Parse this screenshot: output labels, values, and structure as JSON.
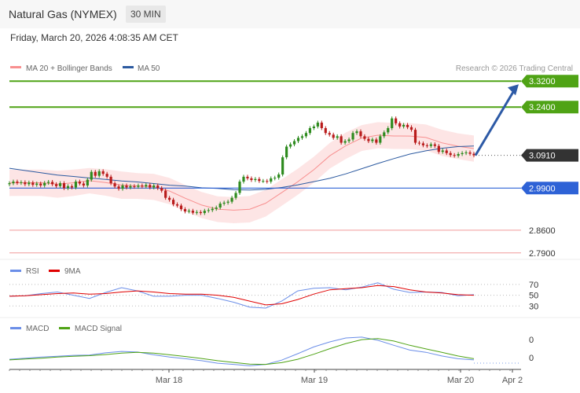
{
  "header": {
    "title": "Natural Gas (NYMEX)",
    "timeframe": "30 MIN",
    "datetime": "Friday, March 20, 2026 4:08:35 AM CET",
    "credit": "Research © 2026 Trading Central"
  },
  "colors": {
    "bollinger": "#f88f8f",
    "bollinger_band_fill": "#fde0e0",
    "ma50": "#2c5aa0",
    "resistance": "#4fa315",
    "support_blue": "#2e62d6",
    "support_red": "#f09a9a",
    "current": "#333333",
    "rsi": "#6b8ee8",
    "rsi_ma": "#e00000",
    "macd": "#6b8ee8",
    "macd_signal": "#4fa315",
    "candle_up": "#2e8b1f",
    "candle_down": "#b91c1c",
    "arrow": "#2d5aa6"
  },
  "chart_data": [
    {
      "type": "candlestick",
      "title": "",
      "legend": [
        "MA 20 + Bollinger Bands",
        "MA 50"
      ],
      "ylim": [
        2.77,
        3.34
      ],
      "x_ticks": [
        "Mar 18",
        "Mar 19",
        "Mar 20",
        "Apr 2"
      ],
      "levels": [
        {
          "value": 3.32,
          "label": "3.3200",
          "kind": "resistance"
        },
        {
          "value": 3.24,
          "label": "3.2400",
          "kind": "resistance"
        },
        {
          "value": 3.091,
          "label": "3.0910",
          "kind": "current"
        },
        {
          "value": 2.99,
          "label": "2.9900",
          "kind": "support_blue"
        },
        {
          "value": 2.86,
          "label": "2.8600",
          "kind": "support_red"
        },
        {
          "value": 2.79,
          "label": "2.7900",
          "kind": "support_red"
        }
      ],
      "close": [
        3.005,
        3.01,
        3.006,
        3.008,
        3.002,
        3.007,
        3.0,
        3.004,
        2.998,
        3.006,
        3.009,
        3.002,
        2.996,
        3.005,
        2.99,
        2.996,
        2.992,
        3.01,
        3.004,
        2.998,
        3.016,
        3.04,
        3.028,
        3.042,
        3.034,
        3.025,
        3.005,
        2.995,
        2.988,
        2.998,
        2.992,
        2.996,
        2.994,
        2.998,
        2.995,
        3.0,
        2.992,
        2.998,
        2.99,
        2.982,
        2.96,
        2.954,
        2.94,
        2.936,
        2.925,
        2.918,
        2.92,
        2.914,
        2.916,
        2.913,
        2.92,
        2.922,
        2.926,
        2.93,
        2.942,
        2.945,
        2.948,
        2.96,
        2.975,
        3.01,
        3.025,
        3.02,
        3.015,
        3.018,
        3.012,
        3.012,
        3.01,
        3.02,
        3.022,
        3.032,
        3.085,
        3.118,
        3.125,
        3.135,
        3.145,
        3.15,
        3.16,
        3.175,
        3.18,
        3.192,
        3.175,
        3.16,
        3.155,
        3.145,
        3.15,
        3.13,
        3.135,
        3.14,
        3.16,
        3.165,
        3.15,
        3.142,
        3.135,
        3.14,
        3.13,
        3.15,
        3.162,
        3.175,
        3.205,
        3.19,
        3.18,
        3.185,
        3.178,
        3.17,
        3.13,
        3.128,
        3.122,
        3.12,
        3.125,
        3.12,
        3.102,
        3.106,
        3.098,
        3.092,
        3.09,
        3.095,
        3.098,
        3.1,
        3.096,
        3.091
      ],
      "ma20_bollinger": {
        "mid": [
          3.006,
          3.0065,
          3.0064,
          3.0018,
          3.0064,
          3.0128,
          3.0073,
          2.9991,
          2.9966,
          2.9938,
          2.9807,
          2.9581,
          2.9376,
          2.925,
          2.9219,
          2.9248,
          2.9434,
          2.976,
          3.0093,
          3.0465,
          3.0897,
          3.1208,
          3.1446,
          3.1532,
          3.1509,
          3.1506,
          3.1461,
          3.1296,
          3.1193,
          3.1119
        ],
        "upper": [
          3.0465,
          3.0472,
          3.0473,
          3.0435,
          3.0473,
          3.0519,
          3.0482,
          3.0415,
          3.0364,
          3.0341,
          3.0214,
          2.9989,
          2.9778,
          2.9648,
          2.9622,
          2.9657,
          2.9845,
          3.0169,
          3.0495,
          3.0865,
          3.1293,
          3.1616,
          3.1845,
          3.1934,
          3.1911,
          3.1906,
          3.1861,
          3.1701,
          3.1591,
          3.1523
        ],
        "lower": [
          2.9655,
          2.9659,
          2.9655,
          2.9601,
          2.9655,
          2.9737,
          2.9664,
          2.9567,
          2.9568,
          2.9534,
          2.94,
          2.9173,
          2.8974,
          2.8852,
          2.8816,
          2.8839,
          2.9023,
          2.9351,
          2.9691,
          3.0065,
          3.0501,
          3.08,
          3.1047,
          3.113,
          3.1107,
          3.1106,
          3.1061,
          3.0891,
          3.0795,
          3.0715
        ]
      },
      "ma50": [
        3.051,
        3.044,
        3.037,
        3.03,
        3.026,
        3.021,
        3.017,
        3.012,
        3.009,
        3.004,
        2.999,
        2.996,
        2.991,
        2.989,
        2.985,
        2.984,
        2.986,
        2.992,
        3.0,
        3.01,
        3.02,
        3.034,
        3.05,
        3.066,
        3.081,
        3.095,
        3.105,
        3.113,
        3.118,
        3.12
      ]
    },
    {
      "type": "line",
      "title": "",
      "legend": [
        "RSI",
        "9MA"
      ],
      "y_ticks": [
        "70",
        "50",
        "30"
      ],
      "ylim": [
        10,
        80
      ],
      "series": [
        {
          "name": "RSI",
          "values": [
            48,
            49,
            53,
            56,
            50,
            44,
            55,
            64,
            58,
            48,
            48,
            50,
            50,
            44,
            37,
            28,
            26,
            39,
            58,
            63,
            64,
            60,
            65,
            73,
            61,
            55,
            56,
            55,
            49,
            51
          ]
        },
        {
          "name": "9MA",
          "values": [
            48,
            49,
            51,
            53,
            54,
            52,
            53,
            56,
            58,
            56,
            53,
            52,
            52,
            50,
            46,
            39,
            32,
            34,
            42,
            52,
            60,
            62,
            64,
            68,
            66,
            60,
            56,
            54,
            51,
            50
          ]
        }
      ]
    },
    {
      "type": "line",
      "title": "",
      "legend": [
        "MACD",
        "MACD Signal"
      ],
      "y_ticks": [
        "0",
        "0"
      ],
      "ylim": [
        -0.07,
        0.07
      ],
      "series": [
        {
          "name": "MACD",
          "values": [
            -0.02,
            -0.016,
            -0.012,
            -0.009,
            -0.006,
            -0.005,
            0.003,
            0.008,
            0.006,
            -0.004,
            -0.012,
            -0.018,
            -0.025,
            -0.034,
            -0.038,
            -0.043,
            -0.038,
            -0.023,
            0.0,
            0.024,
            0.042,
            0.056,
            0.059,
            0.048,
            0.03,
            0.013,
            0.005,
            -0.008,
            -0.018,
            -0.022
          ]
        },
        {
          "name": "MACD Signal",
          "values": [
            -0.022,
            -0.019,
            -0.016,
            -0.012,
            -0.009,
            -0.007,
            -0.003,
            0.002,
            0.005,
            0.002,
            -0.004,
            -0.01,
            -0.017,
            -0.025,
            -0.031,
            -0.037,
            -0.038,
            -0.032,
            -0.02,
            -0.002,
            0.018,
            0.036,
            0.05,
            0.054,
            0.045,
            0.03,
            0.017,
            0.005,
            -0.008,
            -0.018
          ]
        }
      ]
    }
  ]
}
